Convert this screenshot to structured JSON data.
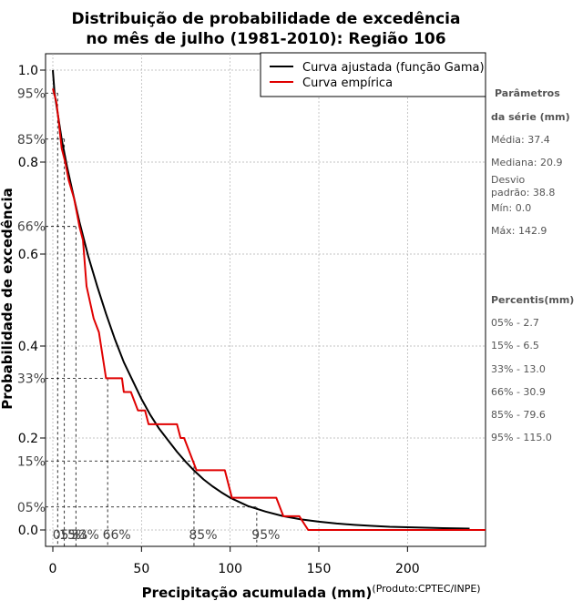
{
  "chart_data": {
    "type": "line",
    "title_line1": "Distribuição de probabilidade de excedência",
    "title_line2": "no mês de julho (1981-2010): Região 106",
    "xlabel": "Precipitação acumulada (mm)",
    "ylabel": "Probabilidade de excedência",
    "credit": "(Produto:CPTEC/INPE)",
    "xlim": [
      0,
      244
    ],
    "ylim": [
      -0.02,
      1.0
    ],
    "x_ticks": [
      0,
      50,
      100,
      150,
      200
    ],
    "y_ticks": [
      {
        "value": 0.0,
        "label": "0.0"
      },
      {
        "value": 0.2,
        "label": "0.2"
      },
      {
        "value": 0.4,
        "label": "0.4"
      },
      {
        "value": 0.6,
        "label": "0.6"
      },
      {
        "value": 0.8,
        "label": "0.8"
      },
      {
        "value": 1.0,
        "label": "1.0"
      }
    ],
    "y_percent_ticks": [
      {
        "value": 0.95,
        "label": "95%"
      },
      {
        "value": 0.85,
        "label": "85%"
      },
      {
        "value": 0.66,
        "label": "66%"
      },
      {
        "value": 0.33,
        "label": "33%"
      },
      {
        "value": 0.15,
        "label": "15%"
      },
      {
        "value": 0.05,
        "label": "05%"
      }
    ],
    "x_percent_labels": [
      {
        "label": "05%",
        "x": 2.7
      },
      {
        "label": "15%",
        "x": 6.5
      },
      {
        "label": "33%",
        "x": 13.0
      },
      {
        "label": "66%",
        "x": 30.9
      },
      {
        "label": "85%",
        "x": 79.6
      },
      {
        "label": "95%",
        "x": 115.0
      }
    ],
    "series": [
      {
        "name": "Curva ajustada (função Gama)",
        "color": "#000000",
        "points": [
          [
            0,
            1.0
          ],
          [
            1,
            0.95
          ],
          [
            3,
            0.9
          ],
          [
            5,
            0.85
          ],
          [
            8,
            0.79
          ],
          [
            10,
            0.755
          ],
          [
            15,
            0.67
          ],
          [
            20,
            0.595
          ],
          [
            25,
            0.53
          ],
          [
            30,
            0.47
          ],
          [
            35,
            0.415
          ],
          [
            40,
            0.365
          ],
          [
            45,
            0.325
          ],
          [
            50,
            0.285
          ],
          [
            55,
            0.25
          ],
          [
            60,
            0.22
          ],
          [
            65,
            0.195
          ],
          [
            70,
            0.17
          ],
          [
            75,
            0.148
          ],
          [
            80,
            0.128
          ],
          [
            85,
            0.11
          ],
          [
            90,
            0.095
          ],
          [
            95,
            0.082
          ],
          [
            100,
            0.07
          ],
          [
            110,
            0.052
          ],
          [
            120,
            0.04
          ],
          [
            130,
            0.03
          ],
          [
            140,
            0.023
          ],
          [
            150,
            0.018
          ],
          [
            160,
            0.014
          ],
          [
            170,
            0.011
          ],
          [
            180,
            0.009
          ],
          [
            190,
            0.007
          ],
          [
            200,
            0.006
          ],
          [
            210,
            0.005
          ],
          [
            220,
            0.004
          ],
          [
            235,
            0.003
          ]
        ]
      },
      {
        "name": "Curva empírica",
        "color": "#e00000",
        "points": [
          [
            0,
            0.96
          ],
          [
            2,
            0.93
          ],
          [
            3,
            0.9
          ],
          [
            5,
            0.83
          ],
          [
            7,
            0.8
          ],
          [
            9,
            0.76
          ],
          [
            12,
            0.72
          ],
          [
            14,
            0.68
          ],
          [
            15,
            0.66
          ],
          [
            17,
            0.63
          ],
          [
            19,
            0.53
          ],
          [
            23,
            0.46
          ],
          [
            26,
            0.43
          ],
          [
            30,
            0.33
          ],
          [
            39,
            0.33
          ],
          [
            40,
            0.3
          ],
          [
            44,
            0.3
          ],
          [
            48,
            0.26
          ],
          [
            52,
            0.26
          ],
          [
            54,
            0.23
          ],
          [
            70,
            0.23
          ],
          [
            72,
            0.2
          ],
          [
            74,
            0.2
          ],
          [
            81,
            0.13
          ],
          [
            97,
            0.13
          ],
          [
            101,
            0.07
          ],
          [
            126,
            0.07
          ],
          [
            130,
            0.03
          ],
          [
            139,
            0.03
          ],
          [
            144,
            0.0
          ],
          [
            244,
            0.0
          ]
        ]
      }
    ],
    "legend_position": "top-right",
    "grid": true
  },
  "side_panel": {
    "params_title": "Parâmetros",
    "params_subtitle": "da série (mm)",
    "media": "Média: 37.4",
    "mediana": "Mediana: 20.9",
    "desvio_line1": "Desvio",
    "desvio_line2": "padrão: 38.8",
    "min": "Mín: 0.0",
    "max": "Máx: 142.9",
    "percentis_title": "Percentis(mm)",
    "p05": "05% - 2.7",
    "p15": "15% - 6.5",
    "p33": "33% - 13.0",
    "p66": "66% - 30.9",
    "p85": "85% - 79.6",
    "p95": "95% - 115.0"
  }
}
